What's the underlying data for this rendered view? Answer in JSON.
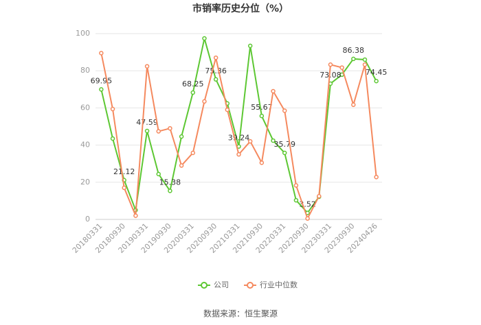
{
  "chart_data": {
    "type": "line",
    "title": "市销率历史分位（%）",
    "categories": [
      "20180331",
      null,
      "20180930",
      null,
      "20190331",
      null,
      "20190930",
      null,
      "20200331",
      null,
      "20200930",
      null,
      "20210331",
      null,
      "20210930",
      null,
      "20220331",
      null,
      "20220930",
      null,
      "20230331",
      null,
      "20230930",
      null,
      "20240426"
    ],
    "series": [
      {
        "name": "公司",
        "color": "#5cc732",
        "values": [
          69.95,
          43.5,
          21.12,
          5,
          47.59,
          24.4,
          15.38,
          44.6,
          68.25,
          97.4,
          75.36,
          62.4,
          39.24,
          93.4,
          55.67,
          42.4,
          35.79,
          10.3,
          3.52,
          12.2,
          73.08,
          77.9,
          86.38,
          86,
          74.45
        ],
        "value_labels": [
          "69.95",
          null,
          "21.12",
          null,
          "47.59",
          null,
          "15.38",
          null,
          "68.25",
          null,
          "75.36",
          null,
          "39.24",
          null,
          "55.67",
          null,
          "35.79",
          null,
          "3.52",
          null,
          "73.08",
          null,
          "86.38",
          null,
          "74.45"
        ]
      },
      {
        "name": "行业中位数",
        "color": "#f5895e",
        "values": [
          89.5,
          59.4,
          17,
          2,
          82.4,
          47.4,
          49,
          29,
          35.8,
          63.5,
          87,
          59,
          35,
          42,
          30.5,
          69,
          58.5,
          18.3,
          0.5,
          12.5,
          83.3,
          81.7,
          61.7,
          83.3,
          22.8
        ]
      }
    ],
    "ylim": [
      0,
      100
    ],
    "yticks": [
      0,
      20,
      40,
      60,
      80,
      100
    ],
    "grid": true,
    "legend": "bottom",
    "source": "数据来源：恒生聚源"
  }
}
